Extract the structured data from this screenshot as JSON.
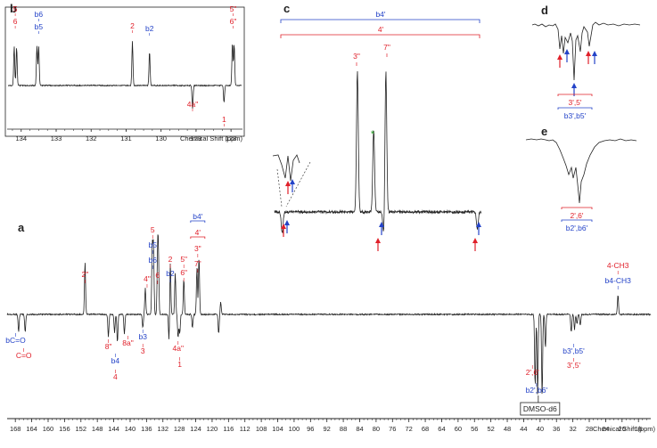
{
  "colors": {
    "red": "#e0202a",
    "blue": "#2443c8",
    "trace": "#222222",
    "star": "#2aa02a"
  },
  "chart_data": [
    {
      "panel": "a",
      "type": "line",
      "xlabel": "Chemical Shift (ppm)",
      "x_reversed": true,
      "xlim": [
        170,
        13
      ],
      "ticks": [
        168,
        164,
        160,
        156,
        152,
        148,
        144,
        140,
        136,
        132,
        128,
        124,
        120,
        116,
        112,
        108,
        104,
        100,
        96,
        92,
        88,
        84,
        80,
        76,
        72,
        68,
        64,
        60,
        56,
        52,
        48,
        44,
        40,
        36,
        32,
        28,
        24,
        20,
        16
      ],
      "peaks": [
        {
          "x": 167.2,
          "y": -22
        },
        {
          "x": 165.6,
          "y": -22
        },
        {
          "x": 151.0,
          "y": 65
        },
        {
          "x": 145.3,
          "y": -28
        },
        {
          "x": 143.8,
          "y": -23
        },
        {
          "x": 143.1,
          "y": -35
        },
        {
          "x": 141.4,
          "y": -25
        },
        {
          "x": 136.9,
          "y": -17
        },
        {
          "x": 136.3,
          "y": 33
        },
        {
          "x": 134.6,
          "y": 86
        },
        {
          "x": 134.3,
          "y": 85
        },
        {
          "x": 133.3,
          "y": 70
        },
        {
          "x": 133.1,
          "y": 68
        },
        {
          "x": 130.5,
          "y": -35
        },
        {
          "x": 130.2,
          "y": 66
        },
        {
          "x": 129.0,
          "y": 52
        },
        {
          "x": 128.3,
          "y": -29
        },
        {
          "x": 127.9,
          "y": -24
        },
        {
          "x": 126.9,
          "y": 45
        },
        {
          "x": 124.8,
          "y": -17
        },
        {
          "x": 123.7,
          "y": 58
        },
        {
          "x": 123.2,
          "y": 73
        },
        {
          "x": 118.4,
          "y": -24
        },
        {
          "x": 117.9,
          "y": 15
        },
        {
          "x": 41.2,
          "y": -90
        },
        {
          "x": 40.6,
          "y": -100
        },
        {
          "x": 39.5,
          "y": -102
        },
        {
          "x": 38.7,
          "y": -42
        },
        {
          "x": 32.4,
          "y": -23
        },
        {
          "x": 31.6,
          "y": -19
        },
        {
          "x": 31.0,
          "y": -12
        },
        {
          "x": 30.2,
          "y": -14
        },
        {
          "x": 21.0,
          "y": 25
        }
      ],
      "labels": [
        {
          "x": 167.5,
          "text": "bC=O",
          "color": "blue"
        },
        {
          "x": 165.5,
          "text": "C=O",
          "color": "red"
        },
        {
          "x": 151.0,
          "text": "2\"",
          "color": "red"
        },
        {
          "x": 145.3,
          "text": "8\"",
          "color": "red"
        },
        {
          "x": 143.6,
          "text": "b4",
          "color": "blue"
        },
        {
          "x": 143.6,
          "text": "4",
          "color": "red"
        },
        {
          "x": 141.4,
          "text": "8a\"",
          "color": "red"
        },
        {
          "x": 136.9,
          "text": "b3",
          "color": "blue"
        },
        {
          "x": 136.9,
          "text": "3",
          "color": "red"
        },
        {
          "x": 136.3,
          "text": "4\"",
          "color": "red"
        },
        {
          "x": 134.5,
          "text": "5",
          "color": "red"
        },
        {
          "x": 134.5,
          "text": "b5",
          "color": "blue"
        },
        {
          "x": 134.5,
          "text": "b6",
          "color": "blue"
        },
        {
          "x": 133.3,
          "text": "6",
          "color": "red"
        },
        {
          "x": 130.2,
          "text": "2",
          "color": "red"
        },
        {
          "x": 130.2,
          "text": "b2",
          "color": "blue"
        },
        {
          "x": 128.3,
          "text": "4a\"",
          "color": "red"
        },
        {
          "x": 127.9,
          "text": "1",
          "color": "red"
        },
        {
          "x": 126.9,
          "text": "5\"",
          "color": "red"
        },
        {
          "x": 126.9,
          "text": "6\"",
          "color": "red"
        },
        {
          "x": 123.5,
          "text": "b4'",
          "color": "blue"
        },
        {
          "x": 123.5,
          "text": "4'",
          "color": "red"
        },
        {
          "x": 123.5,
          "text": "3\"",
          "color": "red"
        },
        {
          "x": 123.5,
          "text": "7\"",
          "color": "red"
        },
        {
          "x": 41.0,
          "text": "2',6'",
          "color": "red"
        },
        {
          "x": 40.0,
          "text": "b2',b6'",
          "color": "blue"
        },
        {
          "x": 40.0,
          "text": "DMSO-d6",
          "color": "black"
        },
        {
          "x": 31.8,
          "text": "b3',b5'",
          "color": "blue"
        },
        {
          "x": 31.8,
          "text": "3',5'",
          "color": "red"
        },
        {
          "x": 21.0,
          "text": "4-CH3",
          "color": "red"
        },
        {
          "x": 21.0,
          "text": "b4-CH3",
          "color": "blue"
        }
      ]
    },
    {
      "panel": "b",
      "type": "line",
      "xlabel": "Chemical Shift (ppm)",
      "x_reversed": true,
      "xlim": [
        134.3,
        127.8
      ],
      "ticks": [
        134,
        133,
        132,
        131,
        130,
        129,
        128
      ],
      "peaks": [
        {
          "x": 134.2,
          "y": 80
        },
        {
          "x": 134.13,
          "y": 78
        },
        {
          "x": 133.55,
          "y": 82
        },
        {
          "x": 133.5,
          "y": 80
        },
        {
          "x": 130.82,
          "y": 90
        },
        {
          "x": 130.33,
          "y": 70
        },
        {
          "x": 129.1,
          "y": -48
        },
        {
          "x": 128.2,
          "y": -35
        },
        {
          "x": 127.96,
          "y": 88
        },
        {
          "x": 127.91,
          "y": 86
        }
      ],
      "labels": [
        {
          "x": 134.17,
          "text": "5",
          "color": "red"
        },
        {
          "x": 134.17,
          "text": "6",
          "color": "red"
        },
        {
          "x": 133.5,
          "text": "b6",
          "color": "blue"
        },
        {
          "x": 133.5,
          "text": "b5",
          "color": "blue"
        },
        {
          "x": 130.82,
          "text": "2",
          "color": "red"
        },
        {
          "x": 130.33,
          "text": "b2",
          "color": "blue"
        },
        {
          "x": 129.1,
          "text": "4a\"",
          "color": "red"
        },
        {
          "x": 128.2,
          "text": "1",
          "color": "red"
        },
        {
          "x": 127.94,
          "text": "5\"",
          "color": "red"
        },
        {
          "x": 127.94,
          "text": "6\"",
          "color": "red"
        }
      ]
    },
    {
      "panel": "c",
      "type": "line",
      "labels": [
        "b4'",
        "4'",
        "3\"",
        "7\""
      ],
      "peaks": [
        {
          "pos": 0.02,
          "y": -15
        },
        {
          "pos": 0.39,
          "y": 100
        },
        {
          "pos": 0.47,
          "y": 58
        },
        {
          "pos": 0.52,
          "y": -18
        },
        {
          "pos": 0.53,
          "y": 100
        },
        {
          "pos": 0.98,
          "y": -12
        }
      ],
      "star": "*"
    },
    {
      "panel": "d",
      "type": "line",
      "labels": [
        "3',5'",
        "b3',b5'"
      ]
    },
    {
      "panel": "e",
      "type": "line",
      "labels": [
        "2',6'",
        "b2',b6'"
      ]
    }
  ],
  "panel_letters": [
    "a",
    "b",
    "c",
    "d",
    "e"
  ]
}
